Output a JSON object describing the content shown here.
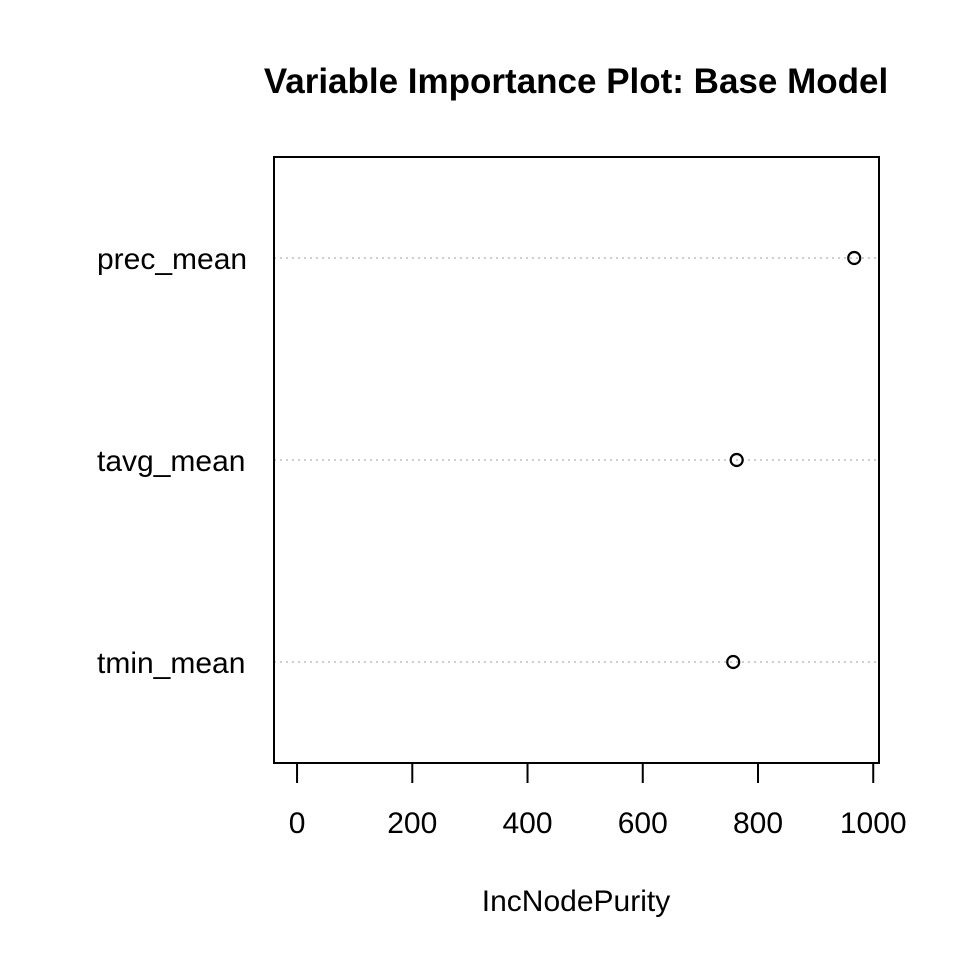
{
  "chart_data": {
    "type": "scatter",
    "title": "Variable Importance Plot: Base Model",
    "xlabel": "IncNodePurity",
    "ylabel": "",
    "xlim": [
      -40,
      1010
    ],
    "xticks": [
      0,
      200,
      400,
      600,
      800,
      1000
    ],
    "xtick_labels": [
      "0",
      "200",
      "400",
      "600",
      "800",
      "1000"
    ],
    "categories": [
      "prec_mean",
      "tavg_mean",
      "tmin_mean"
    ],
    "values": [
      967,
      763,
      757
    ],
    "grid": "dotted horizontal guide lines per variable",
    "marker": "open circle",
    "colors": {
      "points": "#000000",
      "guides": "#bebebe",
      "frame": "#000000"
    }
  }
}
